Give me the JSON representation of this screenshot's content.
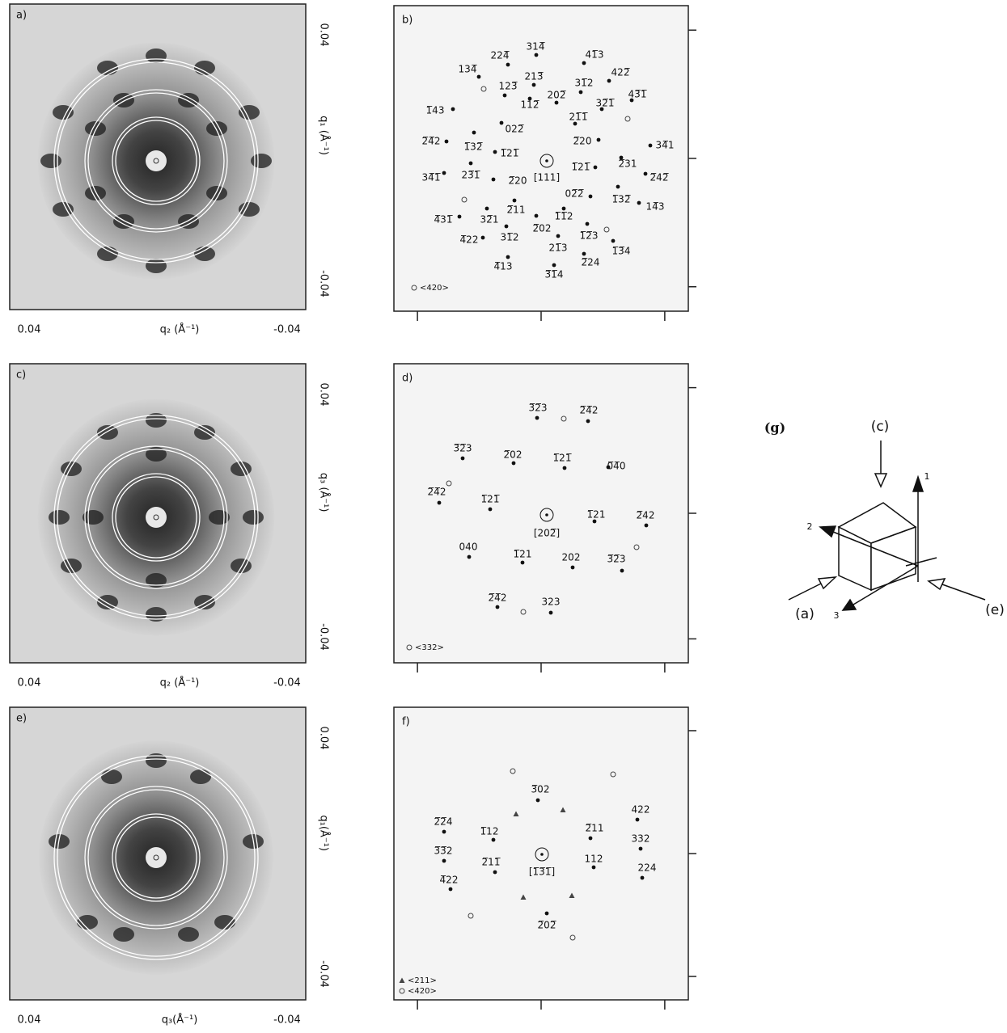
{
  "panels": [
    {
      "label": "a)",
      "x_ticks": [
        "0.04",
        "-0.04"
      ],
      "y_ticks": [
        "0.04",
        "-0.04"
      ],
      "x_axis": "q₂ (Å⁻¹)",
      "y_axis": "q₁ (Å⁻¹)"
    },
    {
      "label": "c)",
      "x_ticks": [
        "0.04",
        "-0.04"
      ],
      "y_ticks": [
        "0.04",
        "-0.04"
      ],
      "x_axis": "q₂ (Å⁻¹)",
      "y_axis": "q₃ (Å⁻¹)"
    },
    {
      "label": "e)",
      "x_ticks": [
        "0.04",
        "-0.04"
      ],
      "y_ticks": [
        "0.04",
        "-0.04"
      ],
      "x_axis": "q₃(Å⁻¹)",
      "y_axis": "q₁(Å⁻¹)"
    }
  ],
  "maps": [
    {
      "label": "b)",
      "center": "[111]",
      "legend": [
        "<420>"
      ],
      "spots": [
        "134̅",
        "224̅",
        "314̅",
        "41̅3",
        "422̅",
        "123̅",
        "213̅",
        "31̅2",
        "1̅43",
        "112̅",
        "202̅",
        "21̅1̅",
        "32̅1̅",
        "43̅1̅",
        "022̅",
        "2̅4̅2",
        "1̅32̅",
        "1̅21̅",
        "2̅20",
        "34̅1",
        "34̅1̅",
        "23̅1̅",
        "2̅20",
        "1̅21̅",
        "2̅31",
        "2̅42̅",
        "02̅2̅",
        "1̅32̅",
        "14̅3",
        "4̅31̅",
        "32̅1",
        "2̅11",
        "1̅1̅2",
        "2̅02",
        "4̅22",
        "31̅2",
        "21̅3",
        "1̅2̅3",
        "1̅3̅4",
        "4̅13",
        "2̅24",
        "3̅1̅4"
      ]
    },
    {
      "label": "d)",
      "center": "[202̅]",
      "legend": [
        "<332>"
      ],
      "spots": [
        "3̅2̅3",
        "2̅4̅2",
        "3̅2̅3",
        "2̅02",
        "1̅21̅",
        "0̅4̅0",
        "2̅4̅2",
        "1̅21̅",
        "1̅21",
        "2̅42",
        "040",
        "1̅21",
        "202",
        "3̅2̅3",
        "2̅4̅2",
        "323"
      ]
    },
    {
      "label": "f)",
      "center": "[1̅3̅1̅]",
      "legend": [
        "<211>",
        "<420>"
      ],
      "spots": [
        "3̅02",
        "2̅2̅4",
        "1̅12",
        "2̅11",
        "422",
        "3̅3̅2",
        "2̅11̅",
        "112",
        "332",
        "4̅22",
        "224",
        "2̅02̅"
      ]
    }
  ],
  "diagram": {
    "label": "(g)",
    "views": [
      "(c)",
      "(a)",
      "(e)"
    ],
    "axes": [
      "1",
      "2",
      "3"
    ]
  }
}
